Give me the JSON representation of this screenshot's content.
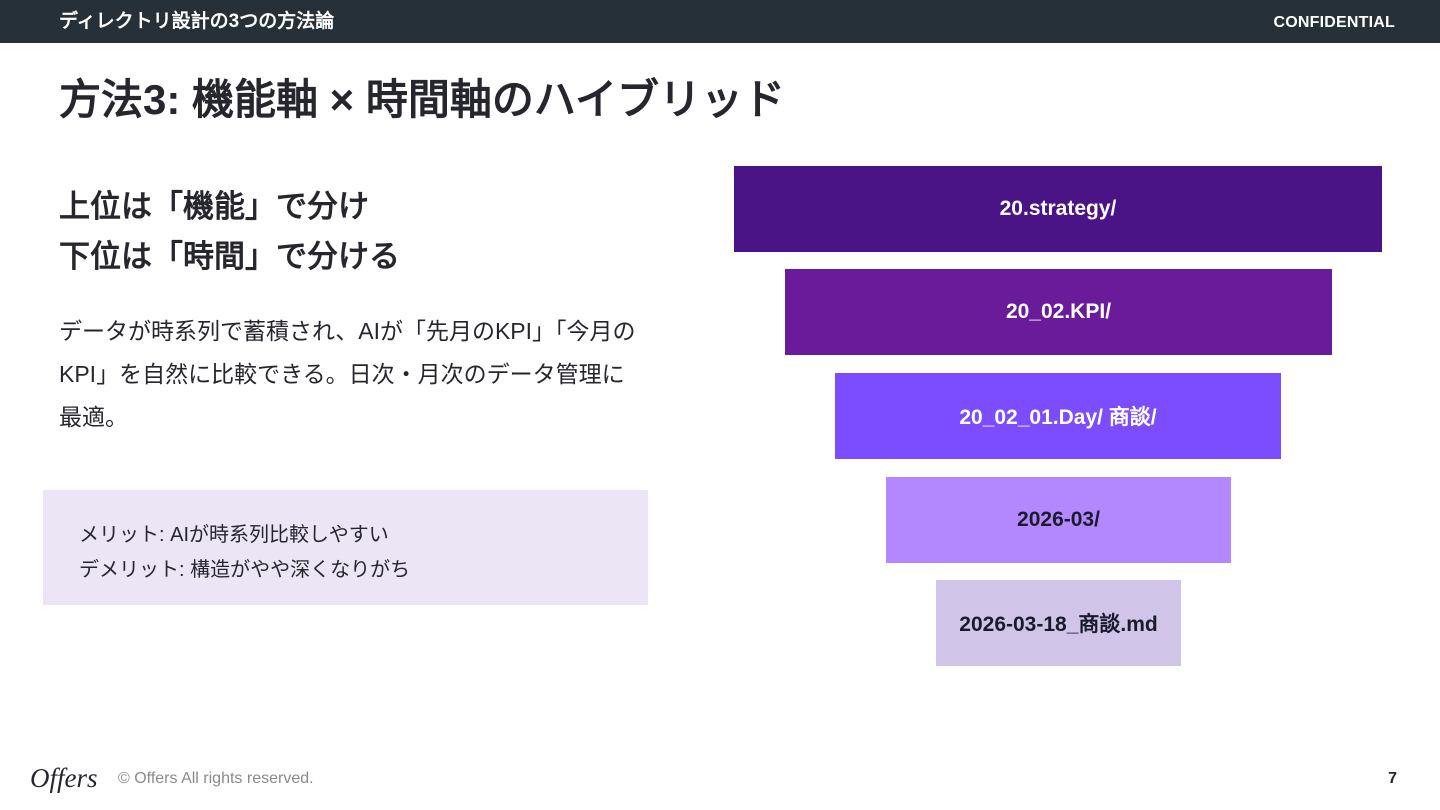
{
  "header": {
    "section_title": "ディレクトリ設計の3つの方法論",
    "confidential": "CONFIDENTIAL"
  },
  "slide": {
    "title": "方法3: 機能軸 × 時間軸のハイブリッド",
    "headline_line1": "上位は「機能」で分け",
    "headline_line2": "下位は「時間」で分ける",
    "body": "データが時系列で蓄積され、AIが「先月のKPI」「今月のKPI」を自然に比較できる。日次・月次のデータ管理に最適。",
    "merit": "メリット: AIが時系列比較しやすい",
    "demerit": "デメリット: 構造がやや深くなりがち"
  },
  "hierarchy": [
    {
      "label": "20.strategy/",
      "color": "#4a1486",
      "text_color": "#ffffff"
    },
    {
      "label": "20_02.KPI/",
      "color": "#6a1b9a",
      "text_color": "#ffffff"
    },
    {
      "label": "20_02_01.Day/ 商談/",
      "color": "#7c4dff",
      "text_color": "#ffffff"
    },
    {
      "label": "2026-03/",
      "color": "#b388ff",
      "text_color": "#1a1a2e"
    },
    {
      "label": "2026-03-18_商談.md",
      "color": "#d1c4e9",
      "text_color": "#1a1a2e"
    }
  ],
  "footer": {
    "logo": "Offers",
    "copyright": "© Offers All rights reserved.",
    "page_number": "7"
  }
}
